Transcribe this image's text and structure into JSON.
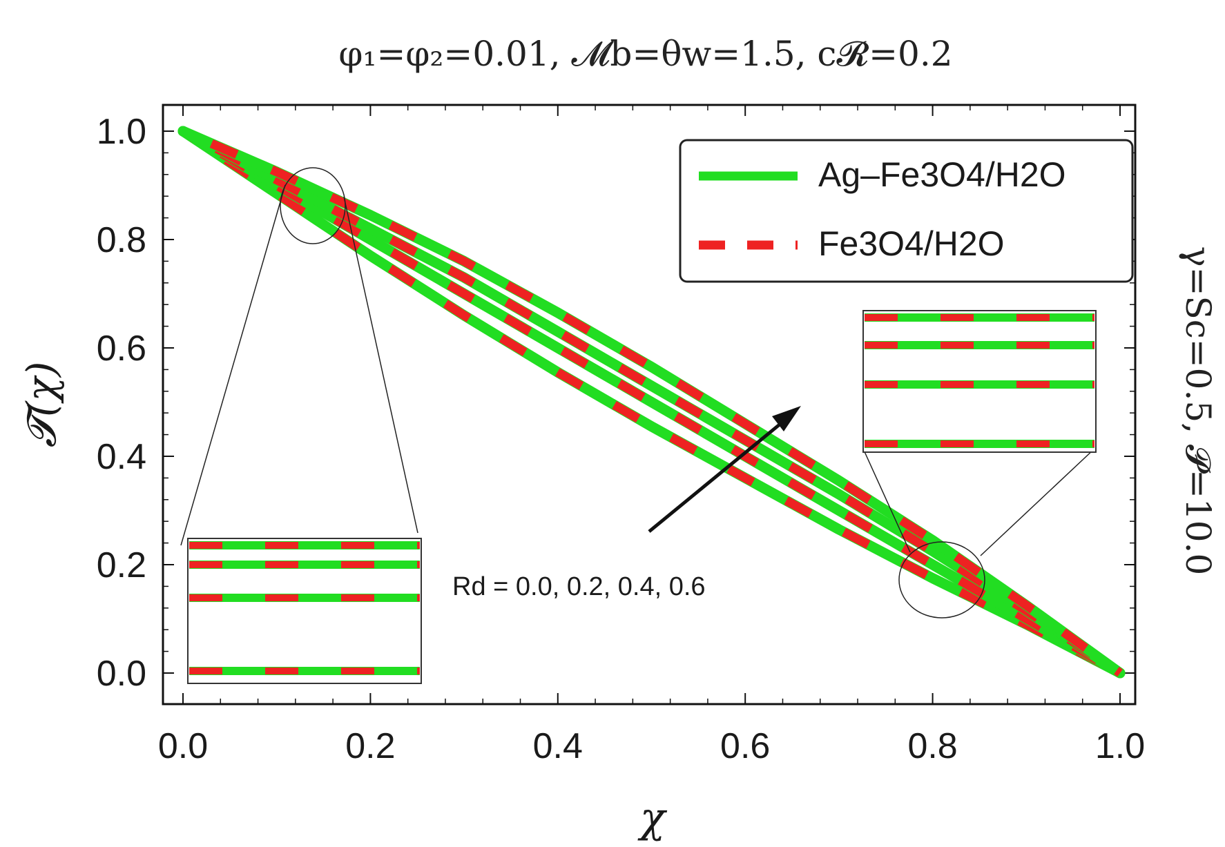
{
  "chart_data": {
    "type": "line",
    "title": "φ₁=φ₂=0.01, 𝓜b=θw=1.5, c𝓡=0.2",
    "side_label": "γ=Sc=0.5, 𝓟=10.0",
    "xlabel": "χ",
    "ylabel": "𝓣(χ)",
    "xlim": [
      0.0,
      1.0
    ],
    "ylim": [
      -0.05,
      1.05
    ],
    "xticks": [
      "0.0",
      "0.2",
      "0.4",
      "0.6",
      "0.8",
      "1.0"
    ],
    "yticks": [
      "0.0",
      "0.2",
      "0.4",
      "0.6",
      "0.8",
      "1.0"
    ],
    "legend": {
      "position": "top-right",
      "entries": [
        {
          "label": "Ag–Fe3O4/H2O",
          "style": "solid"
        },
        {
          "label": "Fe3O4/H2O",
          "style": "dashed"
        }
      ]
    },
    "annotation": "Rd = 0.0, 0.2, 0.4, 0.6",
    "colors": {
      "Ag-Fe3O4/H2O": "#22dd22",
      "Fe3O4/H2O": "#ee2222"
    },
    "x": [
      0.0,
      0.1,
      0.2,
      0.3,
      0.4,
      0.5,
      0.6,
      0.7,
      0.8,
      0.9,
      1.0
    ],
    "series": [
      {
        "values": [
          1.0,
          0.885,
          0.77,
          0.66,
          0.555,
          0.455,
          0.36,
          0.265,
          0.175,
          0.09,
          0.0
        ]
      },
      {
        "values": [
          1.0,
          0.9,
          0.8,
          0.7,
          0.6,
          0.5,
          0.4,
          0.3,
          0.2,
          0.1,
          0.0
        ]
      },
      {
        "values": [
          1.0,
          0.91,
          0.82,
          0.73,
          0.63,
          0.53,
          0.43,
          0.33,
          0.225,
          0.115,
          0.0
        ]
      },
      {
        "values": [
          1.0,
          0.925,
          0.845,
          0.76,
          0.665,
          0.565,
          0.46,
          0.355,
          0.245,
          0.125,
          0.0
        ]
      }
    ]
  }
}
